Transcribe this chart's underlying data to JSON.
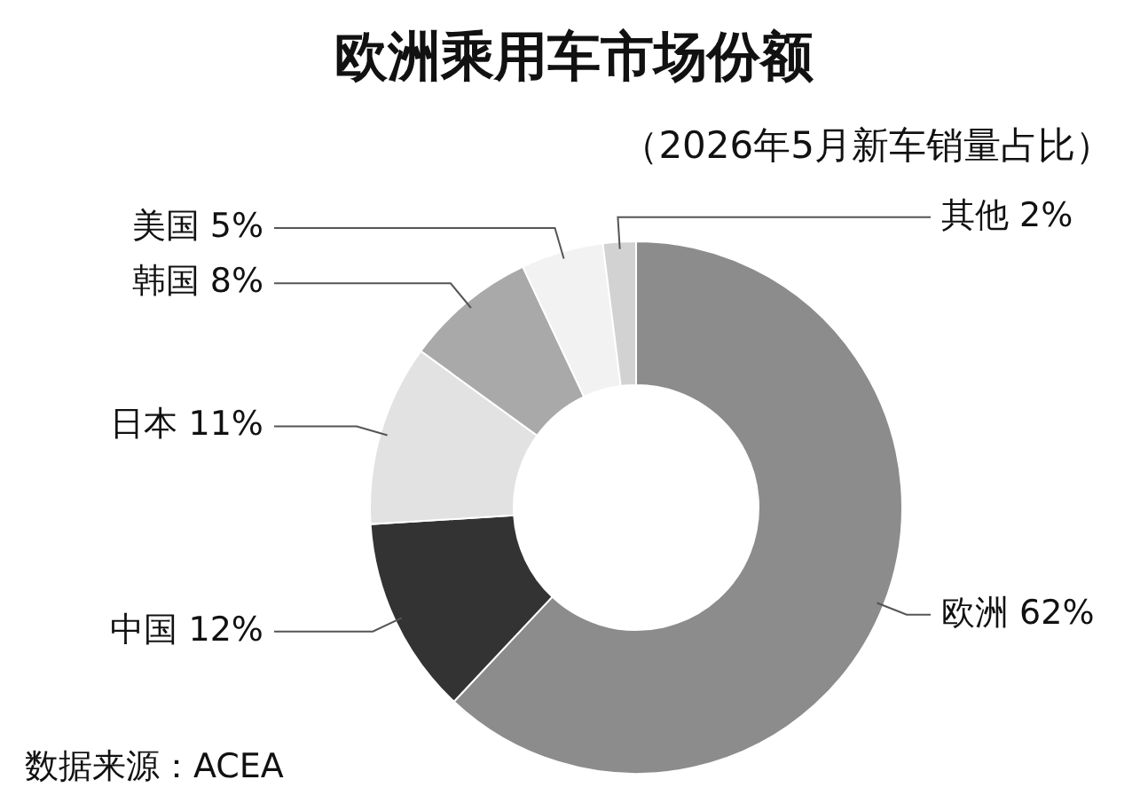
{
  "chart_data": {
    "type": "donut",
    "title": "欧洲乘用车市场份额",
    "subtitle": "（2026年5月新车销量占比）",
    "categories": [
      "欧洲",
      "中国",
      "日本",
      "韩国",
      "美国",
      "其他"
    ],
    "values": [
      62,
      12,
      11,
      8,
      5,
      2
    ],
    "value_labels": [
      "62%",
      "12%",
      "11%",
      "8%",
      "5%",
      "2%"
    ],
    "colors": [
      "#8c8c8c",
      "#333333",
      "#e2e2e2",
      "#a9a9a9",
      "#f2f2f2",
      "#d2d2d2"
    ],
    "legend": false,
    "annotations": [
      "数据来源：ACEA"
    ]
  }
}
